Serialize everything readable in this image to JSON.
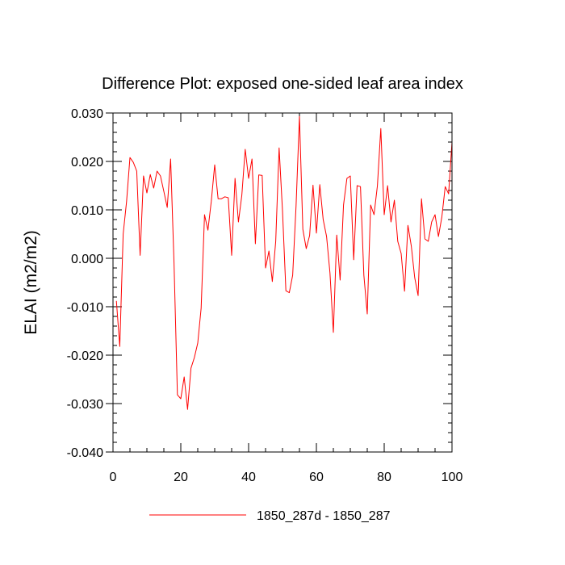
{
  "chart_data": {
    "type": "line",
    "title": "Difference Plot: exposed one-sided leaf area index",
    "xlabel": "",
    "ylabel": "ELAI  (m2/m2)",
    "xlim": [
      0,
      100
    ],
    "ylim": [
      -0.04,
      0.03
    ],
    "xticks": [
      0,
      20,
      40,
      60,
      80,
      100
    ],
    "xtick_labels": [
      "0",
      "20",
      "40",
      "60",
      "80",
      "100"
    ],
    "yticks": [
      -0.04,
      -0.03,
      -0.02,
      -0.01,
      0.0,
      0.01,
      0.02,
      0.03
    ],
    "ytick_labels": [
      "-0.040",
      "-0.030",
      "-0.020",
      "-0.010",
      "0.000",
      "0.010",
      "0.020",
      "0.030"
    ],
    "legend_position": "bottom",
    "grid": false,
    "series": [
      {
        "name": "1850_287d - 1850_287",
        "color": "#ff0000",
        "x": [
          1,
          2,
          3,
          4,
          5,
          6,
          7,
          8,
          9,
          10,
          11,
          12,
          13,
          14,
          15,
          16,
          17,
          18,
          19,
          20,
          21,
          22,
          23,
          24,
          25,
          26,
          27,
          28,
          29,
          30,
          31,
          32,
          33,
          34,
          35,
          36,
          37,
          38,
          39,
          40,
          41,
          42,
          43,
          44,
          45,
          46,
          47,
          48,
          49,
          50,
          51,
          52,
          53,
          54,
          55,
          56,
          57,
          58,
          59,
          60,
          61,
          62,
          63,
          64,
          65,
          66,
          67,
          68,
          69,
          70,
          71,
          72,
          73,
          74,
          75,
          76,
          77,
          78,
          79,
          80,
          81,
          82,
          83,
          84,
          85,
          86,
          87,
          88,
          89,
          90,
          91,
          92,
          93,
          94,
          95,
          96,
          97,
          98,
          99,
          100
        ],
        "values": [
          -0.0088,
          -0.0182,
          0.005,
          0.0117,
          0.0208,
          0.0198,
          0.018,
          0.0006,
          0.017,
          0.0135,
          0.0173,
          0.0145,
          0.018,
          0.017,
          0.0138,
          0.0105,
          0.0205,
          -0.001,
          -0.0282,
          -0.029,
          -0.0245,
          -0.0312,
          -0.0227,
          -0.0205,
          -0.0175,
          -0.0103,
          0.009,
          0.0058,
          0.0118,
          0.0193,
          0.0123,
          0.0123,
          0.0127,
          0.0125,
          0.0006,
          0.0165,
          0.0075,
          0.013,
          0.0225,
          0.0165,
          0.0205,
          0.003,
          0.0172,
          0.0171,
          -0.002,
          0.0015,
          -0.0048,
          0.0035,
          0.0228,
          0.0098,
          -0.0067,
          -0.0071,
          -0.0035,
          0.0108,
          0.0293,
          0.006,
          0.002,
          0.0047,
          0.0151,
          0.0052,
          0.0152,
          0.008,
          0.0045,
          -0.003,
          -0.0153,
          0.0048,
          -0.0045,
          0.011,
          0.0165,
          0.017,
          -0.0003,
          0.015,
          0.0148,
          -0.0035,
          -0.0115,
          0.011,
          0.009,
          0.015,
          0.0268,
          0.009,
          0.015,
          0.0075,
          0.012,
          0.0035,
          0.001,
          -0.0068,
          0.0068,
          0.0025,
          -0.004,
          -0.0077,
          0.0123,
          0.004,
          0.0035,
          0.0075,
          0.009,
          0.0045,
          0.0085,
          0.0148,
          0.0133,
          0.024
        ]
      }
    ]
  }
}
